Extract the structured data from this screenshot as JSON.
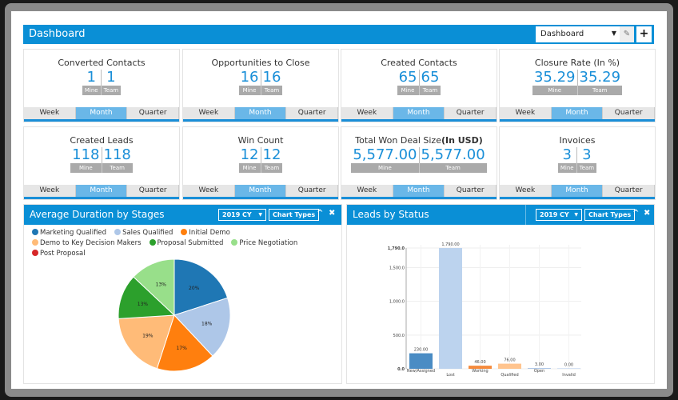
{
  "header": {
    "title": "Dashboard",
    "select_value": "Dashboard",
    "edit_icon": "edit-icon",
    "add_icon": "plus-icon"
  },
  "cards": [
    {
      "title": "Converted Contacts",
      "mine": "1",
      "team": "1"
    },
    {
      "title": "Opportunities to Close",
      "mine": "16",
      "team": "16"
    },
    {
      "title": "Created Contacts",
      "mine": "65",
      "team": "65"
    },
    {
      "title": "Closure Rate (In %)",
      "mine": "35.29",
      "team": "35.29"
    },
    {
      "title": "Created Leads",
      "mine": "118",
      "team": "118"
    },
    {
      "title": "Win Count",
      "mine": "12",
      "team": "12"
    },
    {
      "title": "Total Won Deal Size",
      "title_bold": "(In USD)",
      "mine": "5,577.00",
      "team": "5,577.00"
    },
    {
      "title": "Invoices",
      "mine": "3",
      "team": "3"
    }
  ],
  "labels": {
    "mine": "Mine",
    "team": "Team"
  },
  "periods": [
    "Week",
    "Month",
    "Quarter"
  ],
  "active_period": "Month",
  "panels": {
    "left": {
      "title": "Average Duration by Stages",
      "year": "2019 CY",
      "chart_types": "Chart Types"
    },
    "right": {
      "title": "Leads by Status",
      "year": "2019 CY",
      "chart_types": "Chart Types"
    }
  },
  "colors": {
    "accent": "#0a8fd6"
  },
  "chart_data": [
    {
      "type": "pie",
      "title": "Average Duration by Stages",
      "legend": [
        {
          "name": "Marketing Qualified",
          "color": "#1f77b4"
        },
        {
          "name": "Sales Qualified",
          "color": "#aec7e8"
        },
        {
          "name": "Initial Demo",
          "color": "#ff7f0e"
        },
        {
          "name": "Demo to Key Decision Makers",
          "color": "#ffbb78"
        },
        {
          "name": "Proposal Submitted",
          "color": "#2ca02c"
        },
        {
          "name": "Price Negotiation",
          "color": "#98df8a"
        },
        {
          "name": "Post Proposal",
          "color": "#d62728"
        }
      ],
      "slices": [
        {
          "name": "Marketing Qualified",
          "value": 20,
          "label": "20%"
        },
        {
          "name": "Sales Qualified",
          "value": 18,
          "label": "18%"
        },
        {
          "name": "Initial Demo",
          "value": 17,
          "label": "17%"
        },
        {
          "name": "Demo to Key Decision Makers",
          "value": 19,
          "label": "19%"
        },
        {
          "name": "Proposal Submitted",
          "value": 13,
          "label": "13%"
        },
        {
          "name": "Price Negotiation",
          "value": 13,
          "label": "13%"
        }
      ]
    },
    {
      "type": "bar",
      "title": "Leads by Status",
      "categories": [
        "New/Assigned",
        "Lost",
        "Working",
        "Qualified",
        "Open",
        "Invalid"
      ],
      "values": [
        230,
        1790,
        46,
        76,
        3,
        0
      ],
      "value_labels": [
        "230.00",
        "1,790.00",
        "46.00",
        "76.00",
        "3.00",
        "0.00"
      ],
      "colors": [
        "#4a8cc4",
        "#bcd3ee",
        "#f58a3c",
        "#ffc48e",
        "#aec7e8",
        "#aec7e8"
      ],
      "yticks": [
        0,
        500,
        1000,
        1500,
        1790
      ],
      "ytick_labels": [
        "0.0",
        "500.0",
        "1,000.0",
        "1,500.0",
        "1,790.0"
      ],
      "ylim": [
        0,
        1790
      ]
    }
  ]
}
